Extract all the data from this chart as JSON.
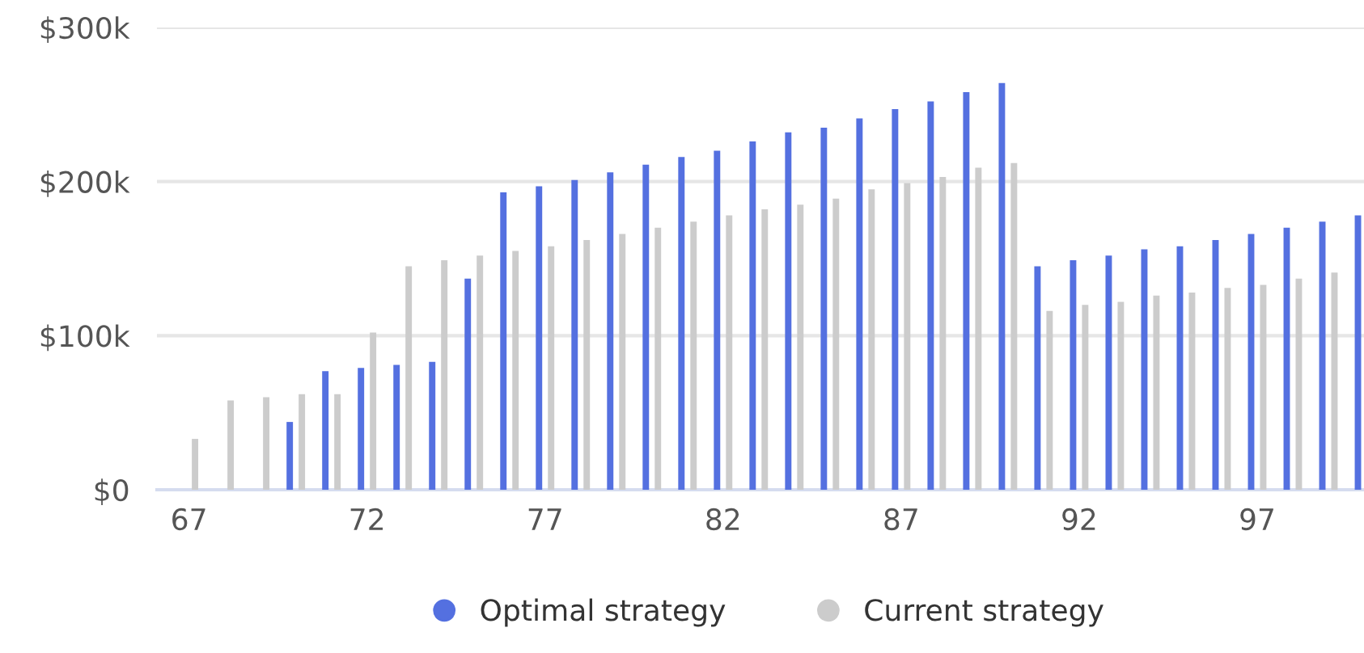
{
  "chart_data": {
    "type": "bar",
    "categories": [
      "67",
      null,
      null,
      null,
      null,
      "72",
      null,
      null,
      null,
      null,
      "77",
      null,
      null,
      null,
      null,
      "82",
      null,
      null,
      null,
      null,
      "87",
      null,
      null,
      null,
      null,
      "92",
      null,
      null,
      null,
      null,
      "97",
      null,
      null,
      null
    ],
    "series": [
      {
        "name": "Optimal strategy",
        "color": "#5470e0",
        "values": [
          null,
          null,
          null,
          44,
          77,
          79,
          81,
          83,
          137,
          193,
          197,
          201,
          206,
          211,
          216,
          220,
          226,
          232,
          235,
          241,
          247,
          252,
          258,
          264,
          145,
          149,
          152,
          156,
          158,
          162,
          166,
          170,
          174,
          178
        ]
      },
      {
        "name": "Current strategy",
        "color": "#cccccc",
        "values": [
          33,
          58,
          60,
          62,
          62,
          102,
          145,
          149,
          152,
          155,
          158,
          162,
          166,
          170,
          174,
          178,
          182,
          185,
          189,
          195,
          199,
          203,
          209,
          212,
          116,
          120,
          122,
          126,
          128,
          131,
          133,
          137,
          141,
          null
        ]
      }
    ],
    "ylim": [
      0,
      300
    ],
    "yticks": [
      {
        "value": 0,
        "label": "$0"
      },
      {
        "value": 100,
        "label": "$100k"
      },
      {
        "value": 200,
        "label": "$200k"
      },
      {
        "value": 300,
        "label": "$300k"
      }
    ],
    "grid": "y",
    "legend": "bottom"
  }
}
